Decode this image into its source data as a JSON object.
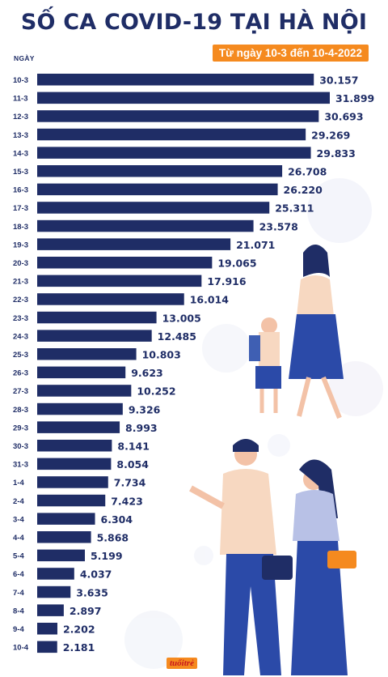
{
  "chart_data": {
    "type": "bar",
    "orientation": "horizontal",
    "title": "SỐ CA COVID-19 TẠI HÀ NỘI",
    "subtitle": "Từ ngày 10-3 đến 10-4-2022",
    "ylabel": "NGÀY",
    "categories": [
      "10-3",
      "11-3",
      "12-3",
      "13-3",
      "14-3",
      "15-3",
      "16-3",
      "17-3",
      "18-3",
      "19-3",
      "20-3",
      "21-3",
      "22-3",
      "23-3",
      "24-3",
      "25-3",
      "26-3",
      "27-3",
      "28-3",
      "29-3",
      "30-3",
      "31-3",
      "1-4",
      "2-4",
      "3-4",
      "4-4",
      "5-4",
      "6-4",
      "7-4",
      "8-4",
      "9-4",
      "10-4"
    ],
    "values": [
      30157,
      31899,
      30693,
      29269,
      29833,
      26708,
      26220,
      25311,
      23578,
      21071,
      19065,
      17916,
      16014,
      13005,
      12485,
      10803,
      9623,
      10252,
      9326,
      8993,
      8141,
      8054,
      7734,
      7423,
      6304,
      5868,
      5199,
      4037,
      3635,
      2897,
      2202,
      2181
    ],
    "value_labels": [
      "30.157",
      "31.899",
      "30.693",
      "29.269",
      "29.833",
      "26.708",
      "26.220",
      "25.311",
      "23.578",
      "21.071",
      "19.065",
      "17.916",
      "16.014",
      "13.005",
      "12.485",
      "10.803",
      "9.623",
      "10.252",
      "9.326",
      "8.993",
      "8.141",
      "8.054",
      "7.734",
      "7.423",
      "6.304",
      "5.868",
      "5.199",
      "4.037",
      "3.635",
      "2.897",
      "2.202",
      "2.181"
    ],
    "xlim": [
      0,
      31899
    ],
    "grid": false,
    "colors": {
      "bar": "#1f2d66",
      "text": "#1f2d66",
      "accent": "#f58a1f",
      "logo_text": "#c7161d"
    }
  },
  "branding": {
    "logo": "tuoitre"
  }
}
